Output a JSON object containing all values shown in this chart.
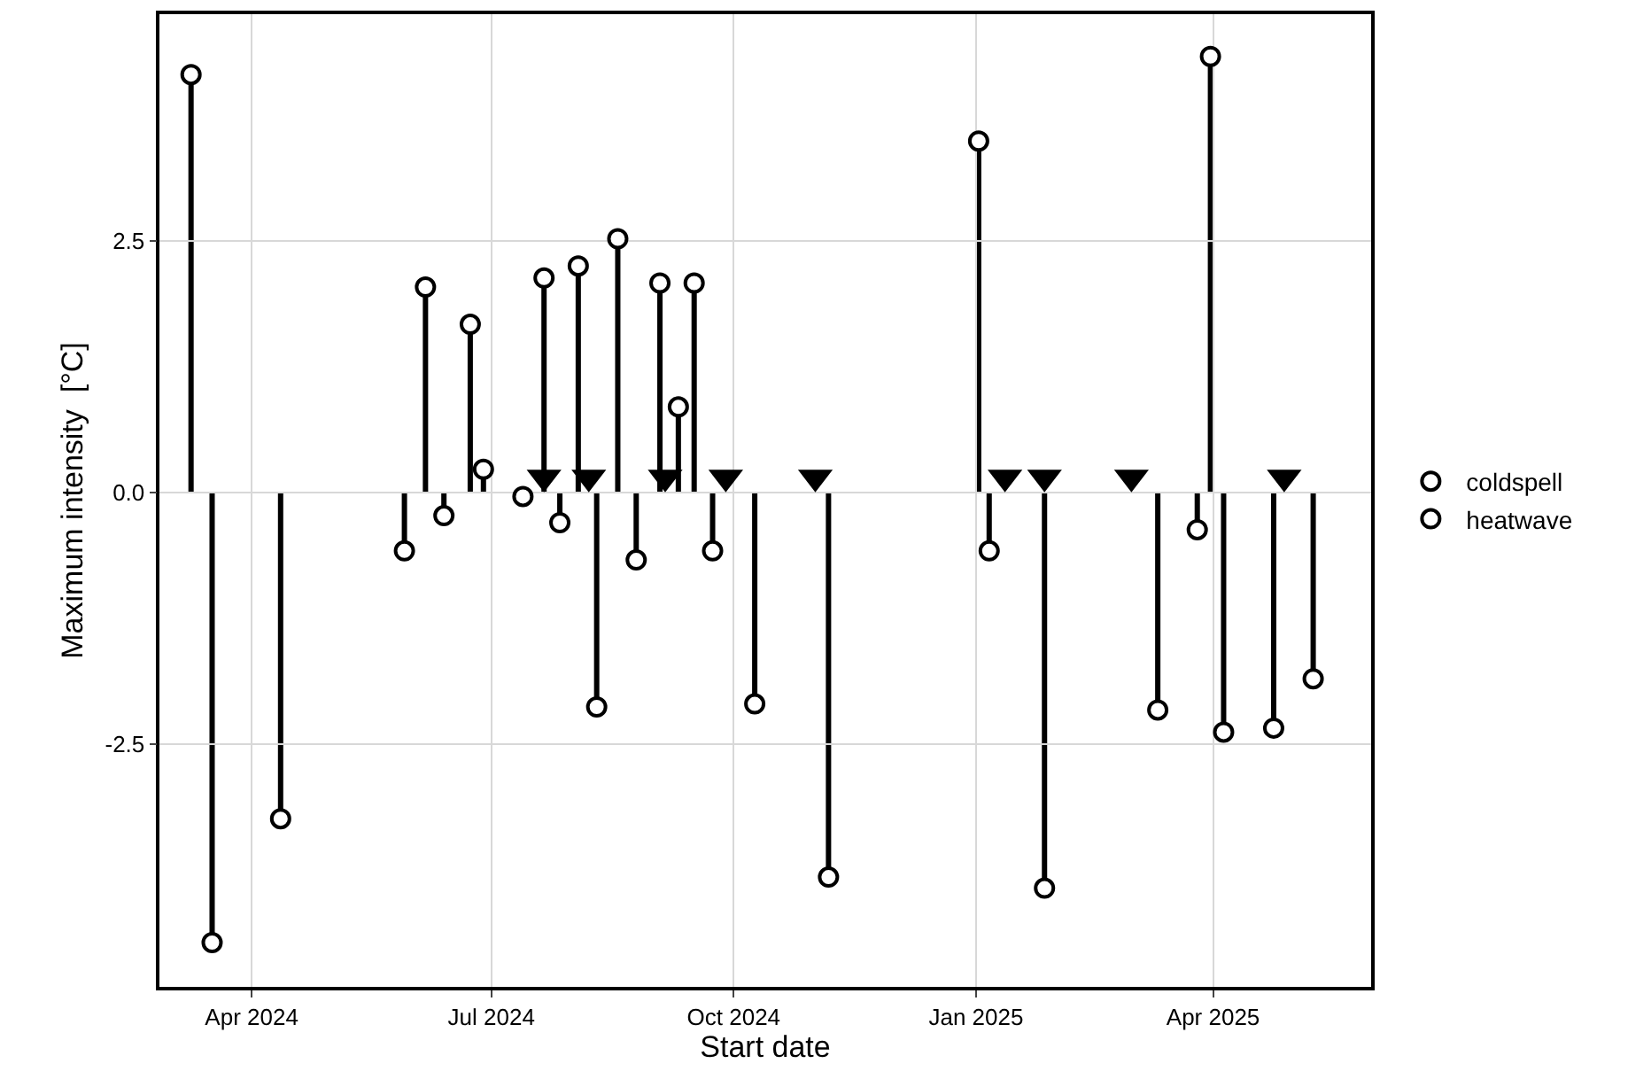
{
  "chart_data": {
    "type": "lollipop",
    "xlabel": "Start date",
    "ylabel": "Maximum intensity  [°C]",
    "xlim": [
      "2024-02-26",
      "2025-05-31"
    ],
    "ylim": [
      -4.91,
      4.75
    ],
    "xticks": [
      {
        "value": "2024-04-01",
        "label": "Apr 2024"
      },
      {
        "value": "2024-07-01",
        "label": "Jul 2024"
      },
      {
        "value": "2024-10-01",
        "label": "Oct 2024"
      },
      {
        "value": "2025-01-01",
        "label": "Jan 2025"
      },
      {
        "value": "2025-04-01",
        "label": "Apr 2025"
      }
    ],
    "yticks": [
      {
        "value": -2.5,
        "label": "-2.5"
      },
      {
        "value": 0,
        "label": "0.0"
      },
      {
        "value": 2.5,
        "label": "2.5"
      }
    ],
    "grid": true,
    "legend": "right",
    "marker": "circle",
    "series": [
      {
        "name": "coldspell",
        "color": "#000000",
        "x": [
          "2024-03-17",
          "2024-04-12",
          "2024-05-29",
          "2024-06-13",
          "2024-07-13",
          "2024-07-27",
          "2024-08-10",
          "2024-08-25",
          "2024-09-23",
          "2024-10-09",
          "2024-11-06",
          "2025-01-06",
          "2025-01-27",
          "2025-03-11",
          "2025-03-26",
          "2025-04-05",
          "2025-04-24",
          "2025-05-09"
        ],
        "values": [
          -4.47,
          -3.24,
          -0.58,
          -0.23,
          -0.04,
          -0.3,
          -2.13,
          -0.67,
          -0.58,
          -2.1,
          -3.82,
          -0.58,
          -3.93,
          -2.16,
          -0.37,
          -2.38,
          -2.34,
          -1.85
        ]
      },
      {
        "name": "heatwave",
        "color": "#000000",
        "x": [
          "2024-03-09",
          "2024-06-06",
          "2024-06-23",
          "2024-06-28",
          "2024-07-21",
          "2024-08-03",
          "2024-08-18",
          "2024-09-03",
          "2024-09-10",
          "2024-09-16",
          "2025-01-02",
          "2025-03-31"
        ],
        "values": [
          4.15,
          2.04,
          1.67,
          0.23,
          2.13,
          2.25,
          2.52,
          2.08,
          0.85,
          2.08,
          3.49,
          4.33
        ]
      },
      {
        "type": "scatter",
        "marker": "triangle",
        "color": "#000000",
        "x": [
          "2024-07-21",
          "2024-08-07",
          "2024-09-05",
          "2024-09-28",
          "2024-11-01",
          "2025-01-12",
          "2025-01-27",
          "2025-03-01",
          "2025-04-28"
        ],
        "values": [
          0.15,
          0.15,
          0.15,
          0.15,
          0.15,
          0.15,
          0.15,
          0.15,
          0.15
        ]
      }
    ]
  }
}
